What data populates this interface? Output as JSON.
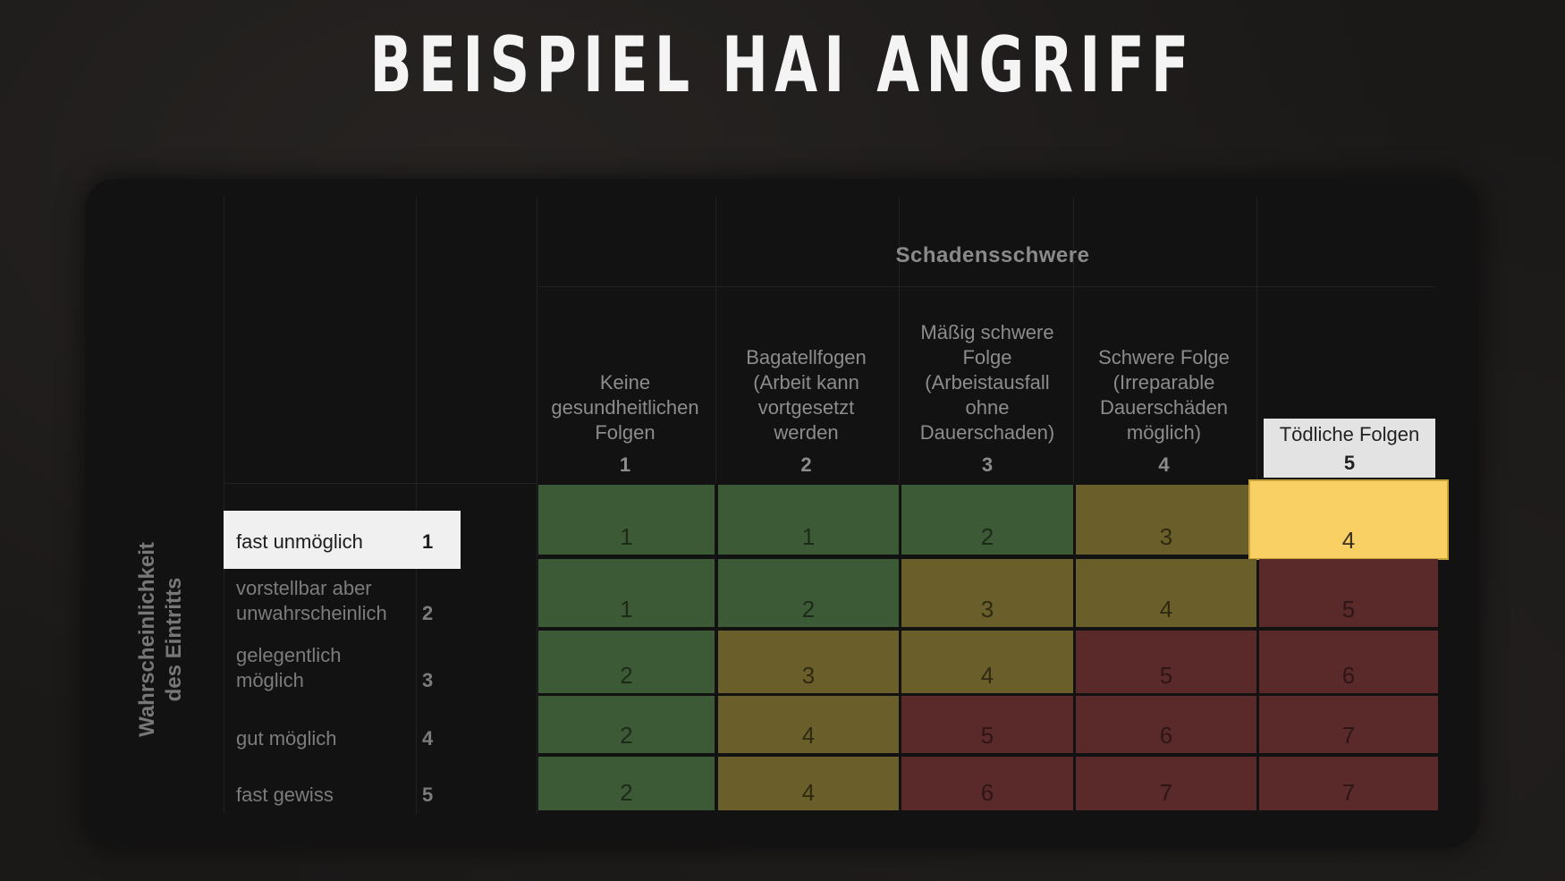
{
  "title": "BEISPIEL HAI ANGRIFF",
  "matrix": {
    "x_axis_label": "Schadensschwere",
    "y_axis_label_line1": "Wahrscheinlichkeit",
    "y_axis_label_line2": "des Eintritts",
    "columns": [
      {
        "label_lines": [
          "Keine",
          "gesundheitlichen",
          "Folgen"
        ],
        "num": "1"
      },
      {
        "label_lines": [
          "Bagatellfogen",
          "(Arbeit kann",
          "vortgesetzt",
          "werden"
        ],
        "num": "2"
      },
      {
        "label_lines": [
          "Mäßig schwere",
          "Folge",
          "(Arbeistausfall",
          "ohne",
          "Dauerschaden)"
        ],
        "num": "3"
      },
      {
        "label_lines": [
          "Schwere Folge",
          "(Irreparable",
          "Dauerschäden",
          "möglich)"
        ],
        "num": "4"
      },
      {
        "label_lines": [
          "Tödliche Folgen"
        ],
        "num": "5",
        "highlighted": true
      }
    ],
    "rows": [
      {
        "label_lines": [
          "fast unmöglich"
        ],
        "num": "1",
        "highlighted": true
      },
      {
        "label_lines": [
          "vorstellbar aber",
          "unwahrscheinlich"
        ],
        "num": "2"
      },
      {
        "label_lines": [
          "gelegentlich",
          "möglich"
        ],
        "num": "3"
      },
      {
        "label_lines": [
          "gut möglich"
        ],
        "num": "4"
      },
      {
        "label_lines": [
          "fast gewiss"
        ],
        "num": "5"
      }
    ],
    "values": [
      [
        "1",
        "1",
        "2",
        "3",
        "4"
      ],
      [
        "1",
        "2",
        "3",
        "4",
        "5"
      ],
      [
        "2",
        "3",
        "4",
        "5",
        "6"
      ],
      [
        "2",
        "4",
        "5",
        "6",
        "7"
      ],
      [
        "2",
        "4",
        "6",
        "7",
        "7"
      ]
    ],
    "highlighted_cell": {
      "row": 0,
      "col": 4
    },
    "colors": {
      "low": "#3d5a36",
      "medium": "#6a5f2a",
      "high": "#5a2a2b",
      "highlight": "#f8d064"
    }
  }
}
